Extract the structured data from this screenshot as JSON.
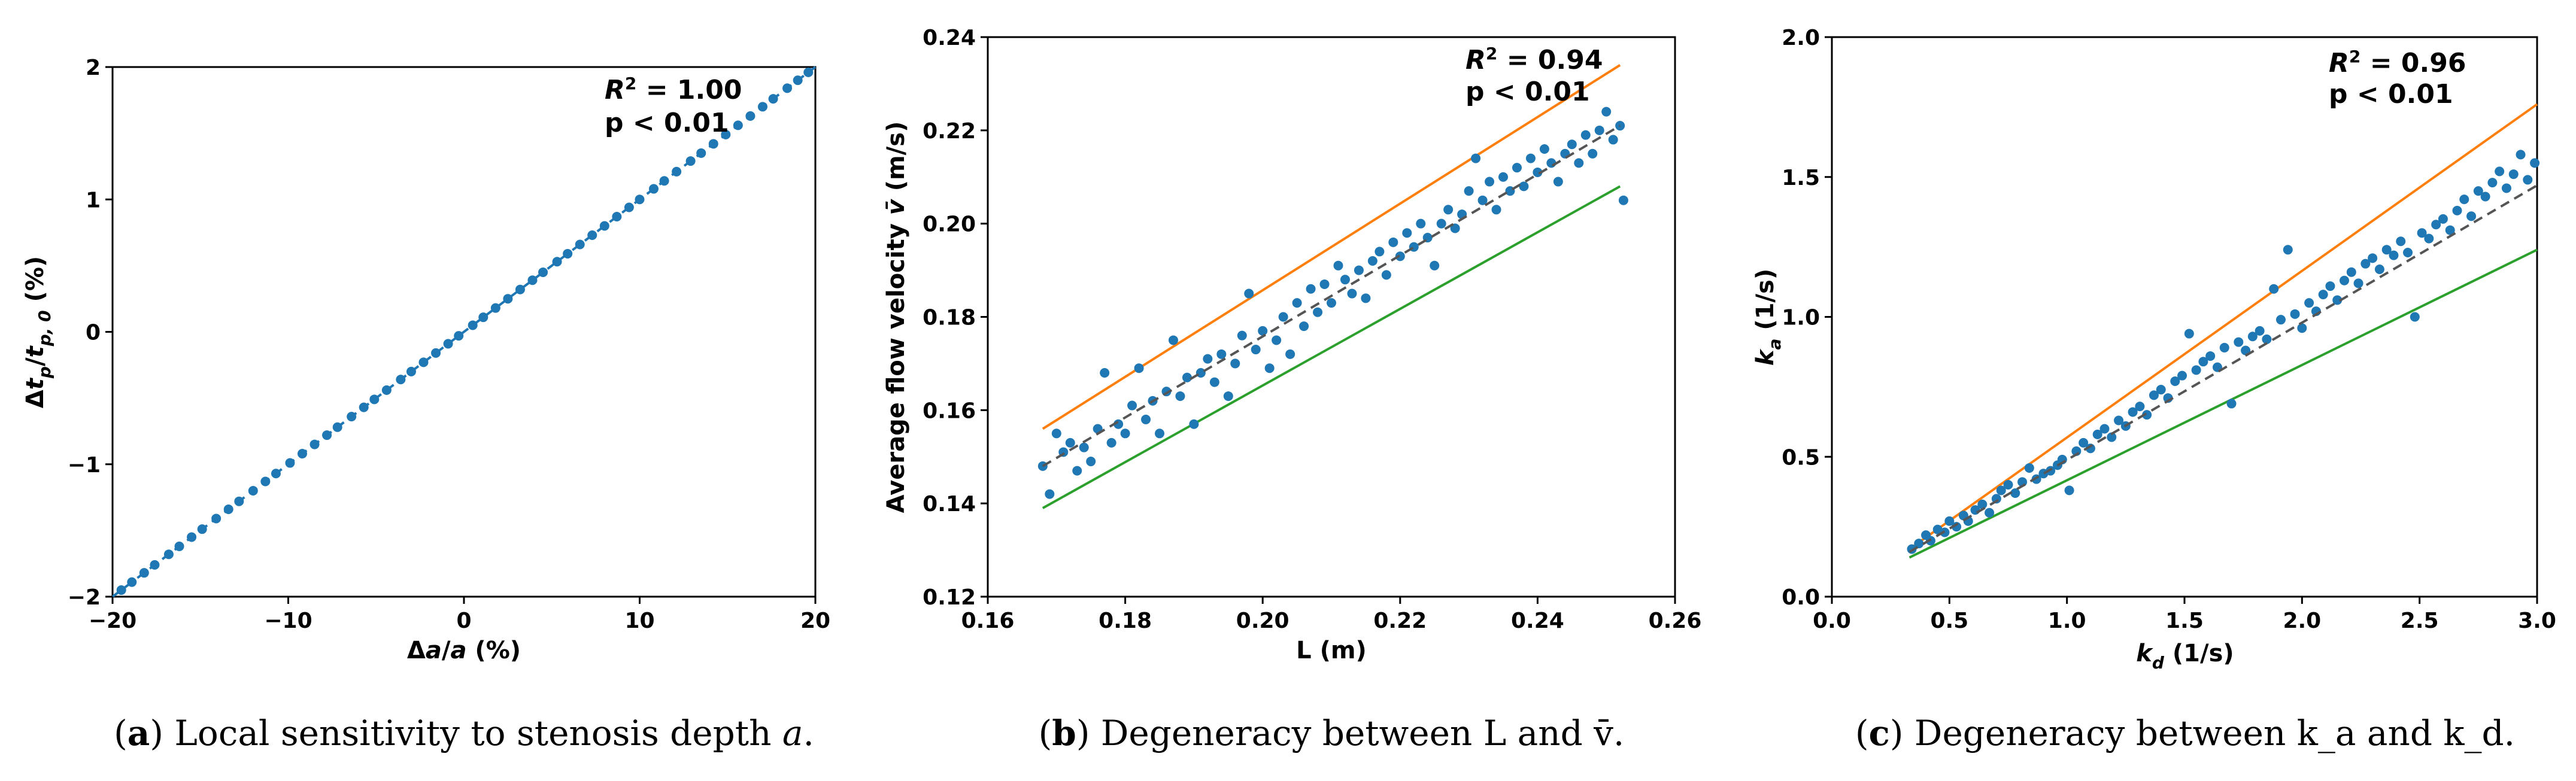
{
  "chart_data": [
    {
      "type": "scatter",
      "id": "a",
      "xlabel": "Δa/a (%)",
      "ylabel": "Δt_p/t_p,0 (%)",
      "xlim": [
        -20,
        20
      ],
      "ylim": [
        -2,
        2
      ],
      "xticks": [
        -20,
        -10,
        0,
        10,
        20
      ],
      "yticks": [
        -2,
        -1,
        0,
        1,
        2
      ],
      "xtick_labels": [
        "−20",
        "−10",
        "0",
        "10",
        "20"
      ],
      "ytick_labels": [
        "−2",
        "−1",
        "0",
        "1",
        "2"
      ],
      "r2": "1.00",
      "p_text": "p < 0.01",
      "fit": {
        "x0": -20,
        "y0": -2,
        "x1": 20,
        "y1": 2
      },
      "bounds": [],
      "points": [
        [
          -19.5,
          -1.95
        ],
        [
          -18.9,
          -1.89
        ],
        [
          -18.2,
          -1.82
        ],
        [
          -17.6,
          -1.76
        ],
        [
          -16.8,
          -1.68
        ],
        [
          -16.2,
          -1.62
        ],
        [
          -15.5,
          -1.55
        ],
        [
          -14.9,
          -1.49
        ],
        [
          -14.1,
          -1.41
        ],
        [
          -13.4,
          -1.34
        ],
        [
          -12.8,
          -1.28
        ],
        [
          -12.0,
          -1.2
        ],
        [
          -11.3,
          -1.13
        ],
        [
          -10.7,
          -1.07
        ],
        [
          -9.9,
          -0.99
        ],
        [
          -9.2,
          -0.92
        ],
        [
          -8.5,
          -0.85
        ],
        [
          -7.8,
          -0.78
        ],
        [
          -7.2,
          -0.72
        ],
        [
          -6.4,
          -0.64
        ],
        [
          -5.7,
          -0.57
        ],
        [
          -5.1,
          -0.51
        ],
        [
          -4.4,
          -0.44
        ],
        [
          -3.6,
          -0.36
        ],
        [
          -3.0,
          -0.3
        ],
        [
          -2.3,
          -0.23
        ],
        [
          -1.6,
          -0.16
        ],
        [
          -0.9,
          -0.09
        ],
        [
          -0.3,
          -0.03
        ],
        [
          0.5,
          0.05
        ],
        [
          1.1,
          0.11
        ],
        [
          1.8,
          0.18
        ],
        [
          2.5,
          0.25
        ],
        [
          3.2,
          0.32
        ],
        [
          3.9,
          0.39
        ],
        [
          4.5,
          0.45
        ],
        [
          5.3,
          0.53
        ],
        [
          5.9,
          0.59
        ],
        [
          6.6,
          0.66
        ],
        [
          7.3,
          0.73
        ],
        [
          8.0,
          0.8
        ],
        [
          8.7,
          0.87
        ],
        [
          9.4,
          0.94
        ],
        [
          10.0,
          1.0
        ],
        [
          10.8,
          1.08
        ],
        [
          11.4,
          1.14
        ],
        [
          12.1,
          1.21
        ],
        [
          12.9,
          1.29
        ],
        [
          13.5,
          1.35
        ],
        [
          14.2,
          1.42
        ],
        [
          14.9,
          1.49
        ],
        [
          15.6,
          1.56
        ],
        [
          16.3,
          1.63
        ],
        [
          17.0,
          1.7
        ],
        [
          17.6,
          1.76
        ],
        [
          18.4,
          1.84
        ],
        [
          19.0,
          1.9
        ],
        [
          19.6,
          1.96
        ]
      ]
    },
    {
      "type": "scatter",
      "id": "b",
      "xlabel": "L (m)",
      "ylabel": "Average flow velocity v̄ (m/s)",
      "xlim": [
        0.16,
        0.26
      ],
      "ylim": [
        0.12,
        0.24
      ],
      "xticks": [
        0.16,
        0.18,
        0.2,
        0.22,
        0.24,
        0.26
      ],
      "yticks": [
        0.12,
        0.14,
        0.16,
        0.18,
        0.2,
        0.22,
        0.24
      ],
      "xtick_labels": [
        "0.16",
        "0.18",
        "0.20",
        "0.22",
        "0.24",
        "0.26"
      ],
      "ytick_labels": [
        "0.12",
        "0.14",
        "0.16",
        "0.18",
        "0.20",
        "0.22",
        "0.24"
      ],
      "r2": "0.94",
      "p_text": "p < 0.01",
      "fit": {
        "x0": 0.168,
        "y0": 0.148,
        "x1": 0.252,
        "y1": 0.221
      },
      "bounds": [
        {
          "name": "upper",
          "color": "#ff7f0e",
          "x0": 0.168,
          "y0": 0.156,
          "x1": 0.252,
          "y1": 0.234
        },
        {
          "name": "lower",
          "color": "#2ca02c",
          "x0": 0.168,
          "y0": 0.139,
          "x1": 0.252,
          "y1": 0.208
        }
      ],
      "points": [
        [
          0.168,
          0.148
        ],
        [
          0.169,
          0.142
        ],
        [
          0.17,
          0.155
        ],
        [
          0.171,
          0.151
        ],
        [
          0.172,
          0.153
        ],
        [
          0.173,
          0.147
        ],
        [
          0.174,
          0.152
        ],
        [
          0.175,
          0.149
        ],
        [
          0.176,
          0.156
        ],
        [
          0.177,
          0.168
        ],
        [
          0.178,
          0.153
        ],
        [
          0.179,
          0.157
        ],
        [
          0.18,
          0.155
        ],
        [
          0.181,
          0.161
        ],
        [
          0.182,
          0.169
        ],
        [
          0.183,
          0.158
        ],
        [
          0.184,
          0.162
        ],
        [
          0.185,
          0.155
        ],
        [
          0.186,
          0.164
        ],
        [
          0.187,
          0.175
        ],
        [
          0.188,
          0.163
        ],
        [
          0.189,
          0.167
        ],
        [
          0.19,
          0.157
        ],
        [
          0.191,
          0.168
        ],
        [
          0.192,
          0.171
        ],
        [
          0.193,
          0.166
        ],
        [
          0.194,
          0.172
        ],
        [
          0.195,
          0.163
        ],
        [
          0.196,
          0.17
        ],
        [
          0.197,
          0.176
        ],
        [
          0.198,
          0.185
        ],
        [
          0.199,
          0.173
        ],
        [
          0.2,
          0.177
        ],
        [
          0.201,
          0.169
        ],
        [
          0.202,
          0.175
        ],
        [
          0.203,
          0.18
        ],
        [
          0.204,
          0.172
        ],
        [
          0.205,
          0.183
        ],
        [
          0.206,
          0.178
        ],
        [
          0.207,
          0.186
        ],
        [
          0.208,
          0.181
        ],
        [
          0.209,
          0.187
        ],
        [
          0.21,
          0.183
        ],
        [
          0.211,
          0.191
        ],
        [
          0.212,
          0.188
        ],
        [
          0.213,
          0.185
        ],
        [
          0.214,
          0.19
        ],
        [
          0.215,
          0.184
        ],
        [
          0.216,
          0.192
        ],
        [
          0.217,
          0.194
        ],
        [
          0.218,
          0.189
        ],
        [
          0.219,
          0.196
        ],
        [
          0.22,
          0.193
        ],
        [
          0.221,
          0.198
        ],
        [
          0.222,
          0.195
        ],
        [
          0.223,
          0.2
        ],
        [
          0.224,
          0.197
        ],
        [
          0.225,
          0.191
        ],
        [
          0.226,
          0.2
        ],
        [
          0.227,
          0.203
        ],
        [
          0.228,
          0.199
        ],
        [
          0.229,
          0.202
        ],
        [
          0.23,
          0.207
        ],
        [
          0.231,
          0.214
        ],
        [
          0.232,
          0.205
        ],
        [
          0.233,
          0.209
        ],
        [
          0.234,
          0.203
        ],
        [
          0.235,
          0.21
        ],
        [
          0.236,
          0.207
        ],
        [
          0.237,
          0.212
        ],
        [
          0.238,
          0.208
        ],
        [
          0.239,
          0.214
        ],
        [
          0.24,
          0.211
        ],
        [
          0.241,
          0.216
        ],
        [
          0.242,
          0.213
        ],
        [
          0.243,
          0.209
        ],
        [
          0.244,
          0.215
        ],
        [
          0.245,
          0.217
        ],
        [
          0.246,
          0.213
        ],
        [
          0.247,
          0.219
        ],
        [
          0.248,
          0.215
        ],
        [
          0.249,
          0.22
        ],
        [
          0.25,
          0.224
        ],
        [
          0.251,
          0.218
        ],
        [
          0.252,
          0.221
        ],
        [
          0.2525,
          0.205
        ]
      ]
    },
    {
      "type": "scatter",
      "id": "c",
      "xlabel": "k_d (1/s)",
      "ylabel": "k_a (1/s)",
      "xlim": [
        0.0,
        3.0
      ],
      "ylim": [
        0.0,
        2.0
      ],
      "xticks": [
        0.0,
        0.5,
        1.0,
        1.5,
        2.0,
        2.5,
        3.0
      ],
      "yticks": [
        0.0,
        0.5,
        1.0,
        1.5,
        2.0
      ],
      "xtick_labels": [
        "0.0",
        "0.5",
        "1.0",
        "1.5",
        "2.0",
        "2.5",
        "3.0"
      ],
      "ytick_labels": [
        "0.0",
        "0.5",
        "1.0",
        "1.5",
        "2.0"
      ],
      "r2": "0.96",
      "p_text": "p < 0.01",
      "fit": {
        "x0": 0.33,
        "y0": 0.16,
        "x1": 3.0,
        "y1": 1.47
      },
      "bounds": [
        {
          "name": "upper",
          "color": "#ff7f0e",
          "x0": 0.33,
          "y0": 0.17,
          "x1": 3.0,
          "y1": 1.76
        },
        {
          "name": "lower",
          "color": "#2ca02c",
          "x0": 0.33,
          "y0": 0.14,
          "x1": 3.0,
          "y1": 1.24
        }
      ],
      "points": [
        [
          0.34,
          0.17
        ],
        [
          0.37,
          0.19
        ],
        [
          0.4,
          0.22
        ],
        [
          0.42,
          0.2
        ],
        [
          0.45,
          0.24
        ],
        [
          0.48,
          0.23
        ],
        [
          0.5,
          0.27
        ],
        [
          0.53,
          0.25
        ],
        [
          0.56,
          0.29
        ],
        [
          0.58,
          0.27
        ],
        [
          0.61,
          0.31
        ],
        [
          0.64,
          0.33
        ],
        [
          0.67,
          0.3
        ],
        [
          0.7,
          0.35
        ],
        [
          0.72,
          0.38
        ],
        [
          0.75,
          0.4
        ],
        [
          0.78,
          0.37
        ],
        [
          0.81,
          0.41
        ],
        [
          0.84,
          0.46
        ],
        [
          0.87,
          0.42
        ],
        [
          0.9,
          0.44
        ],
        [
          0.93,
          0.45
        ],
        [
          0.96,
          0.47
        ],
        [
          0.98,
          0.49
        ],
        [
          1.01,
          0.38
        ],
        [
          1.04,
          0.52
        ],
        [
          1.07,
          0.55
        ],
        [
          1.1,
          0.53
        ],
        [
          1.13,
          0.58
        ],
        [
          1.16,
          0.6
        ],
        [
          1.19,
          0.57
        ],
        [
          1.22,
          0.63
        ],
        [
          1.25,
          0.61
        ],
        [
          1.28,
          0.66
        ],
        [
          1.31,
          0.68
        ],
        [
          1.34,
          0.65
        ],
        [
          1.37,
          0.72
        ],
        [
          1.4,
          0.74
        ],
        [
          1.43,
          0.71
        ],
        [
          1.46,
          0.77
        ],
        [
          1.49,
          0.79
        ],
        [
          1.52,
          0.94
        ],
        [
          1.55,
          0.81
        ],
        [
          1.58,
          0.84
        ],
        [
          1.61,
          0.86
        ],
        [
          1.64,
          0.82
        ],
        [
          1.67,
          0.89
        ],
        [
          1.7,
          0.69
        ],
        [
          1.73,
          0.91
        ],
        [
          1.76,
          0.88
        ],
        [
          1.79,
          0.93
        ],
        [
          1.82,
          0.95
        ],
        [
          1.85,
          0.92
        ],
        [
          1.88,
          1.1
        ],
        [
          1.91,
          0.99
        ],
        [
          1.94,
          1.24
        ],
        [
          1.97,
          1.01
        ],
        [
          2.0,
          0.96
        ],
        [
          2.03,
          1.05
        ],
        [
          2.06,
          1.02
        ],
        [
          2.09,
          1.08
        ],
        [
          2.12,
          1.11
        ],
        [
          2.15,
          1.06
        ],
        [
          2.18,
          1.13
        ],
        [
          2.21,
          1.16
        ],
        [
          2.24,
          1.12
        ],
        [
          2.27,
          1.19
        ],
        [
          2.3,
          1.21
        ],
        [
          2.33,
          1.17
        ],
        [
          2.36,
          1.24
        ],
        [
          2.39,
          1.22
        ],
        [
          2.42,
          1.27
        ],
        [
          2.45,
          1.23
        ],
        [
          2.48,
          1.0
        ],
        [
          2.51,
          1.3
        ],
        [
          2.54,
          1.28
        ],
        [
          2.57,
          1.33
        ],
        [
          2.6,
          1.35
        ],
        [
          2.63,
          1.31
        ],
        [
          2.66,
          1.38
        ],
        [
          2.69,
          1.42
        ],
        [
          2.72,
          1.36
        ],
        [
          2.75,
          1.45
        ],
        [
          2.78,
          1.43
        ],
        [
          2.81,
          1.48
        ],
        [
          2.84,
          1.52
        ],
        [
          2.87,
          1.46
        ],
        [
          2.9,
          1.51
        ],
        [
          2.93,
          1.58
        ],
        [
          2.96,
          1.49
        ],
        [
          2.99,
          1.55
        ]
      ]
    }
  ],
  "captions": [
    {
      "label": "a",
      "text": " Local sensitivity to stenosis depth ",
      "math": "a",
      "end": "."
    },
    {
      "label": "b",
      "text": " Degeneracy between L and v̄."
    },
    {
      "label": "c",
      "text": " Degeneracy between k_a and k_d."
    }
  ],
  "colors": {
    "points": "#1f77b4",
    "fit": "#555555",
    "upper": "#ff7f0e",
    "lower": "#2ca02c"
  }
}
